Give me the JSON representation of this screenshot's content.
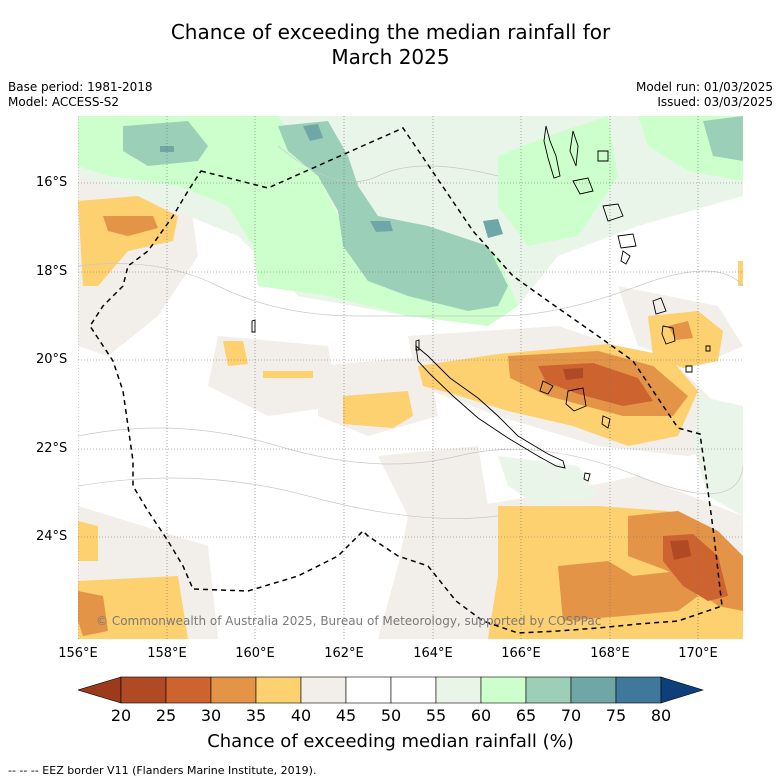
{
  "title_line1": "Chance of exceeding the median rainfall for",
  "title_line2": "March 2025",
  "base_period": "Base period: 1981-2018",
  "model": "Model: ACCESS-S2",
  "model_run": "Model run: 01/03/2025",
  "issued": "Issued: 03/03/2025",
  "copyright": "© Commonwealth of Australia 2025, Bureau of Meteorology, supported by COSPPac",
  "lat_labels": [
    "16°S",
    "18°S",
    "20°S",
    "22°S",
    "24°S"
  ],
  "lon_labels": [
    "156°E",
    "158°E",
    "160°E",
    "162°E",
    "164°E",
    "166°E",
    "168°E",
    "170°E"
  ],
  "colorbar": {
    "ticks": [
      "20",
      "25",
      "30",
      "35",
      "40",
      "45",
      "50",
      "55",
      "60",
      "65",
      "70",
      "75",
      "80"
    ],
    "colors": [
      "#9c3a1c",
      "#b04a25",
      "#cd6430",
      "#e39447",
      "#fdd070",
      "#f2eee9",
      "#ffffff",
      "#ffffff",
      "#eaf5ea",
      "#ccffcc",
      "#9ccfb8",
      "#6fa7a6",
      "#3f789a",
      "#0e3f7a"
    ],
    "label": "Chance of exceeding median rainfall (%)"
  },
  "footnote": "--  --  -- EEZ border V11 (Flanders Marine Institute, 2019)."
}
